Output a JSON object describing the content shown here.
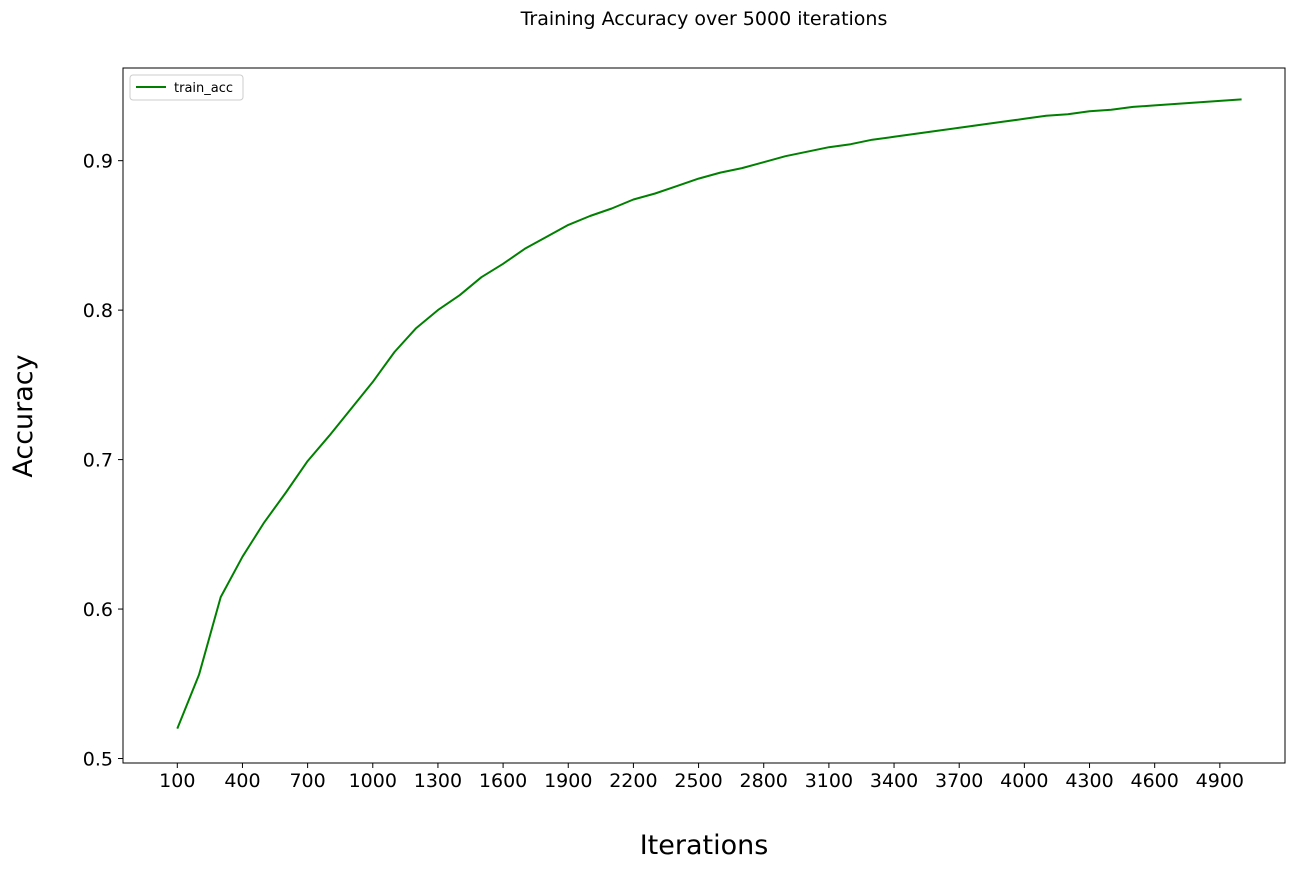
{
  "chart_data": {
    "type": "line",
    "title": "Training Accuracy over 5000 iterations",
    "xlabel": "Iterations",
    "ylabel": "Accuracy",
    "xlim": [
      -150,
      5200
    ],
    "ylim": [
      0.497,
      0.962
    ],
    "xticks": [
      100,
      400,
      700,
      1000,
      1300,
      1600,
      1900,
      2200,
      2500,
      2800,
      3100,
      3400,
      3700,
      4000,
      4300,
      4600,
      4900
    ],
    "yticks": [
      0.5,
      0.6,
      0.7,
      0.8,
      0.9
    ],
    "ytick_labels": [
      "0.5",
      "0.6",
      "0.7",
      "0.8",
      "0.9"
    ],
    "grid": false,
    "legend_position": "upper-left",
    "colors": {
      "line": "#008000",
      "frame": "#000000",
      "background": "#ffffff"
    },
    "series": [
      {
        "name": "train_acc",
        "x": [
          100,
          200,
          300,
          400,
          500,
          600,
          700,
          800,
          900,
          1000,
          1100,
          1200,
          1300,
          1400,
          1500,
          1600,
          1700,
          1800,
          1900,
          2000,
          2100,
          2200,
          2300,
          2400,
          2500,
          2600,
          2700,
          2800,
          2900,
          3000,
          3100,
          3200,
          3300,
          3400,
          3500,
          3600,
          3700,
          3800,
          3900,
          4000,
          4100,
          4200,
          4300,
          4400,
          4500,
          4600,
          4700,
          4800,
          4900,
          5000
        ],
        "y": [
          0.52,
          0.556,
          0.608,
          0.635,
          0.658,
          0.678,
          0.699,
          0.716,
          0.734,
          0.752,
          0.772,
          0.788,
          0.8,
          0.81,
          0.822,
          0.831,
          0.841,
          0.849,
          0.857,
          0.863,
          0.868,
          0.874,
          0.878,
          0.883,
          0.888,
          0.892,
          0.895,
          0.899,
          0.903,
          0.906,
          0.909,
          0.911,
          0.914,
          0.916,
          0.918,
          0.92,
          0.922,
          0.924,
          0.926,
          0.928,
          0.93,
          0.931,
          0.933,
          0.934,
          0.936,
          0.937,
          0.938,
          0.939,
          0.94,
          0.941
        ]
      }
    ]
  }
}
